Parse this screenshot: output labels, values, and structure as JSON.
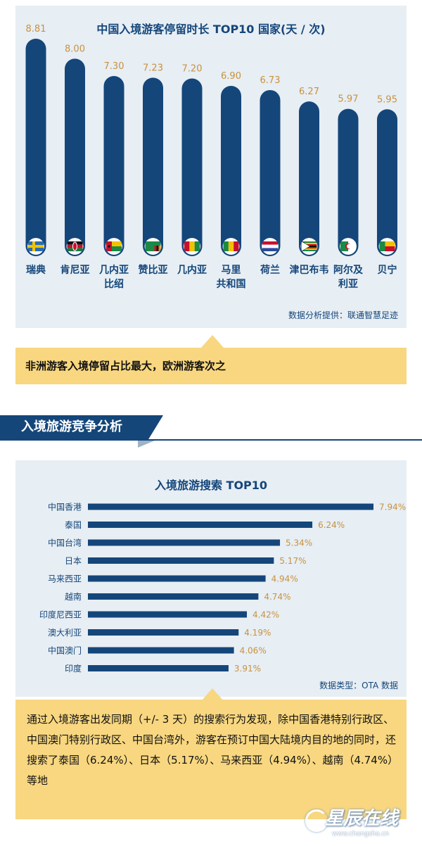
{
  "chart_data": [
    {
      "type": "bar",
      "orientation": "vertical",
      "title": "中国入境游客停留时长 TOP10 国家(天 / 次)",
      "categories": [
        "瑞典",
        "肯尼亚",
        "几内亚比绍",
        "赞比亚",
        "几内亚",
        "马里共和国",
        "荷兰",
        "津巴布韦",
        "阿尔及利亚",
        "贝宁"
      ],
      "category_lines": [
        [
          "瑞典"
        ],
        [
          "肯尼亚"
        ],
        [
          "几内亚",
          "比绍"
        ],
        [
          "赞比亚"
        ],
        [
          "几内亚"
        ],
        [
          "马里",
          "共和国"
        ],
        [
          "荷兰"
        ],
        [
          "津巴布韦"
        ],
        [
          "阿尔及",
          "利亚"
        ],
        [
          "贝宁"
        ]
      ],
      "values": [
        8.81,
        8.0,
        7.3,
        7.23,
        7.2,
        6.9,
        6.73,
        6.27,
        5.97,
        5.95
      ],
      "value_labels": [
        "8.81",
        "8.00",
        "7.30",
        "7.23",
        "7.20",
        "6.90",
        "6.73",
        "6.27",
        "5.97",
        "5.95"
      ],
      "flag_icons": [
        "sweden-flag-icon",
        "kenya-flag-icon",
        "guinea-bissau-flag-icon",
        "zambia-flag-icon",
        "guinea-flag-icon",
        "mali-flag-icon",
        "netherlands-flag-icon",
        "zimbabwe-flag-icon",
        "algeria-flag-icon",
        "benin-flag-icon"
      ],
      "source": "数据分析提供：联通智慧足迹",
      "bar_color": "#14467a",
      "label_color": "#c9923e"
    },
    {
      "type": "bar",
      "orientation": "horizontal",
      "title": "入境旅游搜索 TOP10",
      "categories": [
        "中国香港",
        "泰国",
        "中国台湾",
        "日本",
        "马来西亚",
        "越南",
        "印度尼西亚",
        "澳大利亚",
        "中国澳门",
        "印度"
      ],
      "values": [
        7.94,
        6.24,
        5.34,
        5.17,
        4.94,
        4.74,
        4.42,
        4.19,
        4.06,
        3.91
      ],
      "value_labels": [
        "7.94%",
        "6.24%",
        "5.34%",
        "5.17%",
        "4.94%",
        "4.74%",
        "4.42%",
        "4.19%",
        "4.06%",
        "3.91%"
      ],
      "source": "数据类型：OTA 数据",
      "bar_color": "#14467a",
      "label_color": "#c9923e"
    }
  ],
  "callout1": "非洲游客入境停留占比最大，欧洲游客次之",
  "section_header": "入境旅游竞争分析",
  "callout2": "通过入境游客出发同期（+/- 3 天）的搜索行为发现，除中国香港特别行政区、中国澳门特别行政区、中国台湾外，游客在预订中国大陆境内目的地的同时，还搜索了泰国（6.24%）、日本（5.17%）、马来西亚（4.94%）、越南（4.74%）等地",
  "watermark": {
    "text": "星辰在线",
    "url": "www.changsha.cn"
  }
}
